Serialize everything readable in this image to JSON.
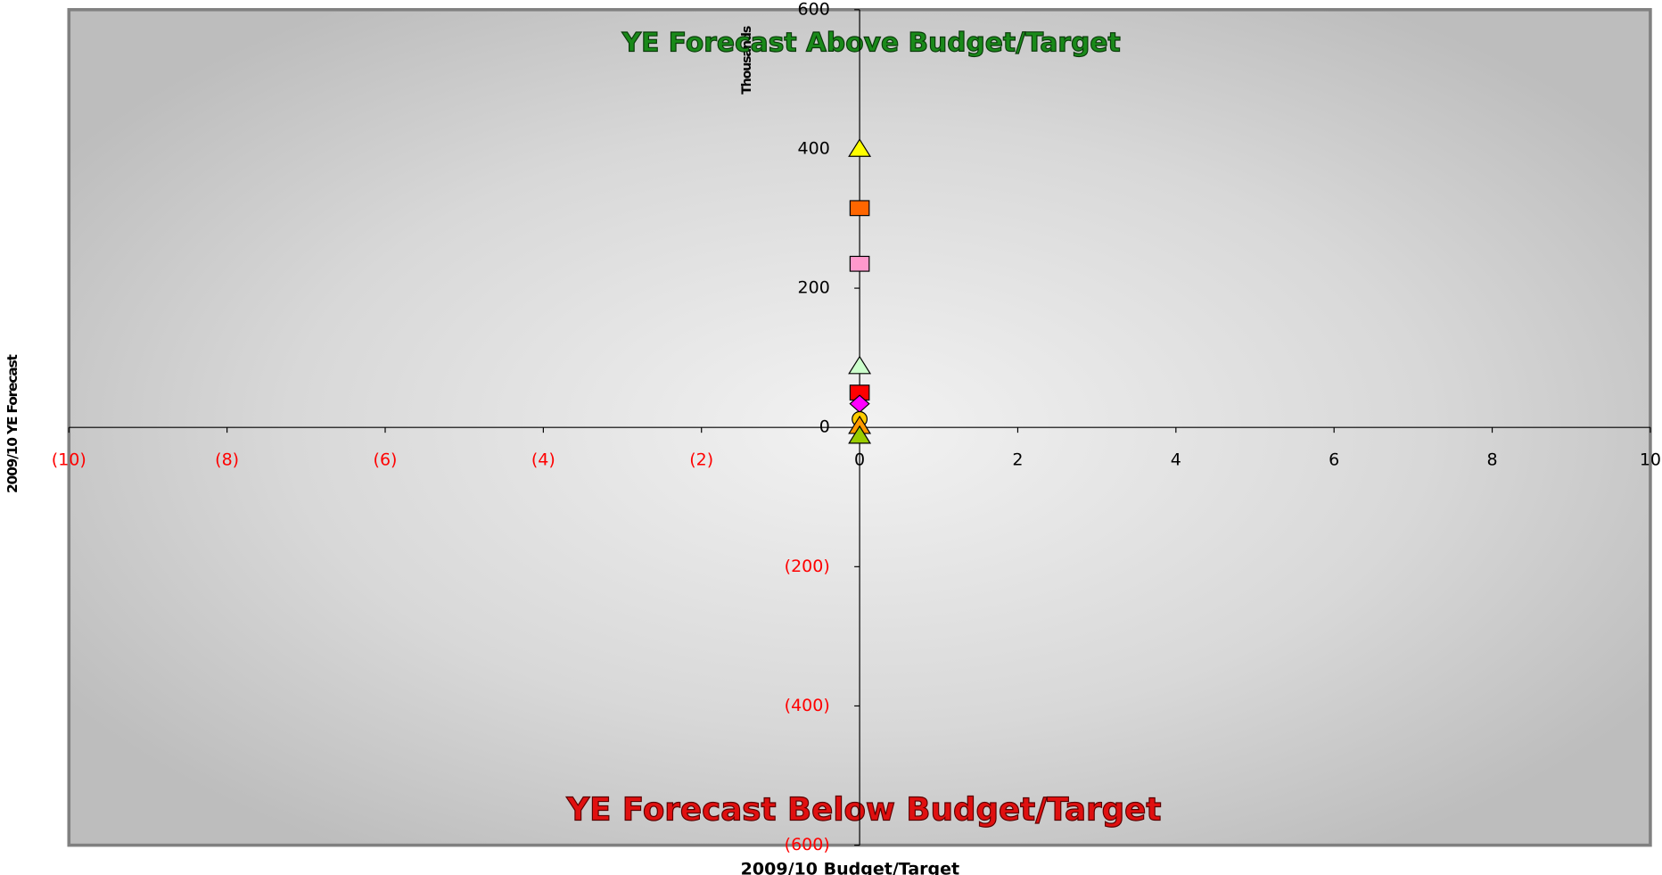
{
  "chart_data": {
    "type": "scatter",
    "y_axis_label": "2009/10 YE Forecast",
    "x_axis_label": "2009/10 Budget/Target",
    "y_unit_label": "Thousands",
    "annotations": [
      {
        "text": "YE Forecast Above Budget/Target",
        "color": "#1a8a1a"
      },
      {
        "text": "YE Forecast Below Budget/Target",
        "color": "#e01010"
      }
    ],
    "xlim": [
      -10,
      10
    ],
    "xticks": [
      {
        "value": -10,
        "label": "(10)"
      },
      {
        "value": -8,
        "label": "(8)"
      },
      {
        "value": -6,
        "label": "(6)"
      },
      {
        "value": -4,
        "label": "(4)"
      },
      {
        "value": -2,
        "label": "(2)"
      },
      0,
      2,
      4,
      6,
      8,
      10
    ],
    "ylim": [
      -600,
      600
    ],
    "yticks": [
      {
        "value": -600,
        "label": "(600)"
      },
      {
        "value": -400,
        "label": "(400)"
      },
      {
        "value": -200,
        "label": "(200)"
      },
      0,
      200,
      400,
      600
    ],
    "negative_tick_color": "#ff0000",
    "series": [
      {
        "color": "#ffff00",
        "marker": "triangle",
        "x": [
          0
        ],
        "values": [
          400
        ]
      },
      {
        "color": "#ff6600",
        "marker": "square",
        "x": [
          0
        ],
        "values": [
          315
        ]
      },
      {
        "color": "#ff99cc",
        "marker": "square",
        "x": [
          0
        ],
        "values": [
          235
        ]
      },
      {
        "color": "#ccffcc",
        "marker": "triangle",
        "x": [
          0
        ],
        "values": [
          88
        ]
      },
      {
        "color": "#ff0000",
        "marker": "square",
        "x": [
          0
        ],
        "values": [
          50
        ]
      },
      {
        "color": "#ff00ff",
        "marker": "diamond",
        "x": [
          0
        ],
        "values": [
          34
        ]
      },
      {
        "color": "#ffcc00",
        "marker": "circle",
        "x": [
          0
        ],
        "values": [
          12
        ]
      },
      {
        "color": "#ff9900",
        "marker": "triangle",
        "x": [
          0
        ],
        "values": [
          2
        ]
      },
      {
        "color": "#99cc00",
        "marker": "triangle",
        "x": [
          0
        ],
        "values": [
          -12
        ]
      }
    ]
  }
}
